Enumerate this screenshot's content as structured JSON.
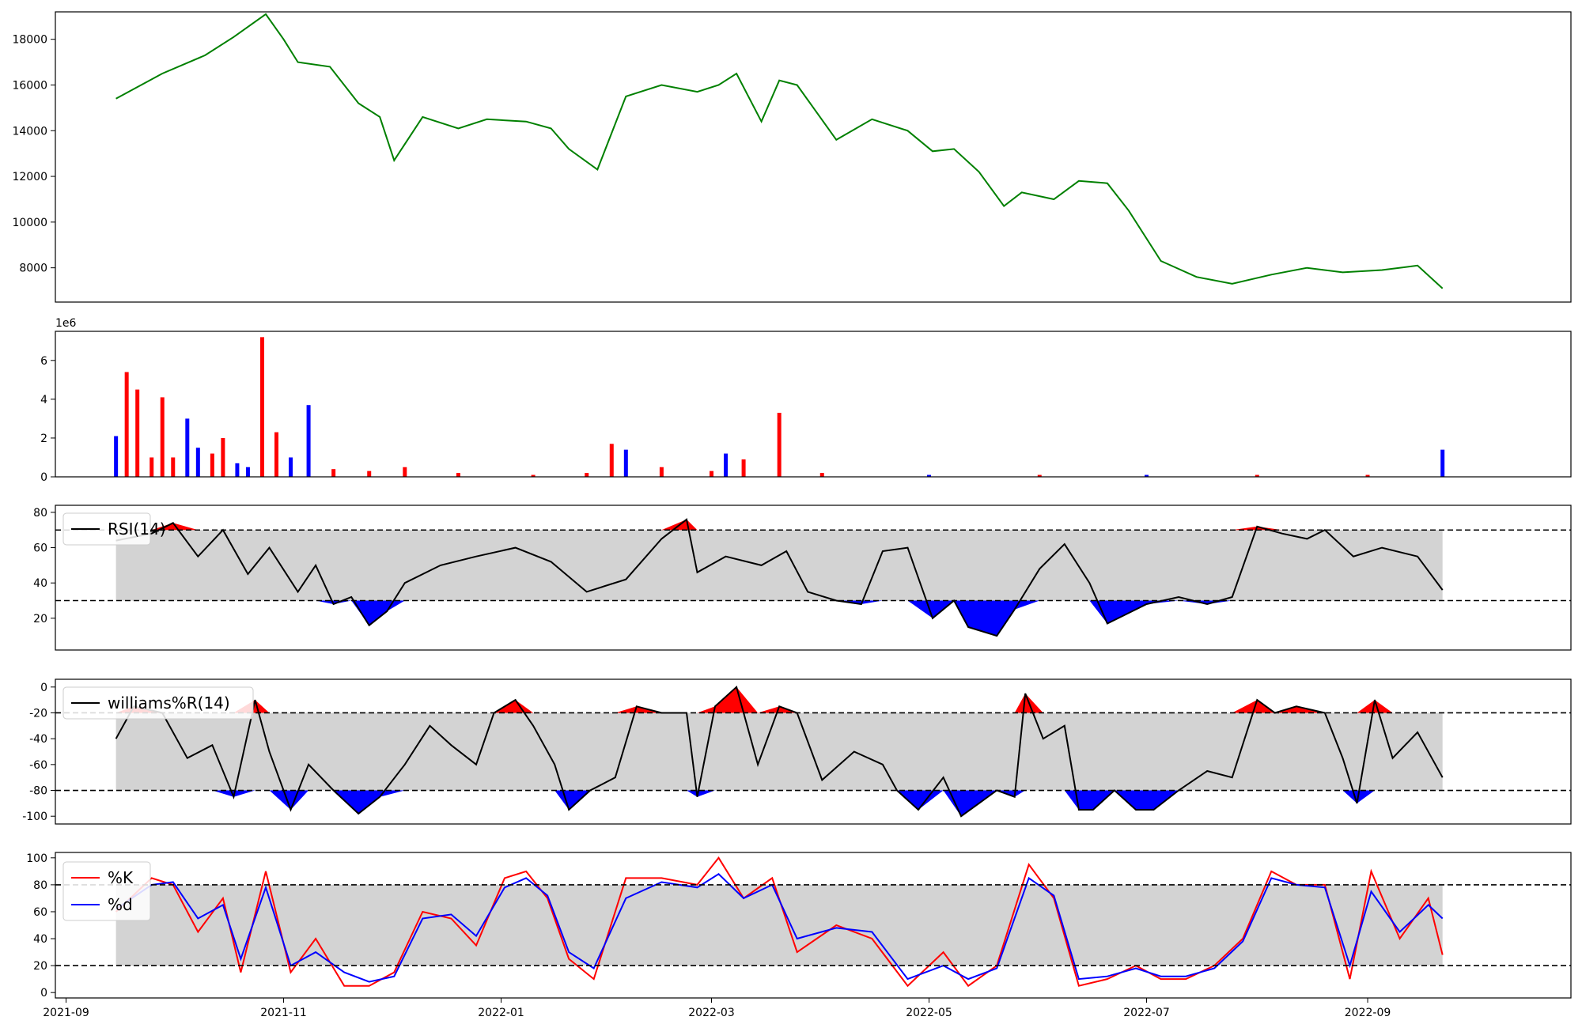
{
  "figure": {
    "x_dates": [
      "2021-09",
      "2021-11",
      "2022-01",
      "2022-03",
      "2022-05",
      "2022-07",
      "2022-09"
    ]
  },
  "colors": {
    "price_line": "#008000",
    "volume_up": "#ff0000",
    "volume_down": "#0000ff",
    "overbought_fill": "#ff0000",
    "oversold_fill": "#0000ff",
    "band_fill": "#d3d3d3",
    "k_line": "#ff0000",
    "d_line": "#0000ff",
    "indicator_line": "#000000"
  },
  "chart_data": [
    {
      "type": "line",
      "panel": "price",
      "ylim": [
        6500,
        19200
      ],
      "yticks": [
        8000,
        10000,
        12000,
        14000,
        16000,
        18000
      ],
      "grid": false,
      "x": [
        "2021-09-15",
        "2021-09-28",
        "2021-10-10",
        "2021-10-18",
        "2021-10-27",
        "2021-11-01",
        "2021-11-05",
        "2021-11-14",
        "2021-11-22",
        "2021-11-28",
        "2021-12-02",
        "2021-12-10",
        "2021-12-20",
        "2021-12-28",
        "2022-01-08",
        "2022-01-15",
        "2022-01-20",
        "2022-01-28",
        "2022-02-05",
        "2022-02-15",
        "2022-02-25",
        "2022-03-03",
        "2022-03-08",
        "2022-03-15",
        "2022-03-20",
        "2022-03-25",
        "2022-04-05",
        "2022-04-15",
        "2022-04-25",
        "2022-05-02",
        "2022-05-08",
        "2022-05-15",
        "2022-05-22",
        "2022-05-27",
        "2022-06-05",
        "2022-06-12",
        "2022-06-20",
        "2022-06-26",
        "2022-07-05",
        "2022-07-15",
        "2022-07-25",
        "2022-08-05",
        "2022-08-15",
        "2022-08-25",
        "2022-09-05",
        "2022-09-15",
        "2022-09-22"
      ],
      "y": [
        15400,
        16500,
        17300,
        18100,
        19100,
        18000,
        17000,
        16800,
        15200,
        14600,
        12700,
        14600,
        14100,
        14500,
        14400,
        14100,
        13200,
        12300,
        15500,
        16000,
        15700,
        16000,
        16500,
        14400,
        16200,
        16000,
        13600,
        14500,
        14000,
        13100,
        13200,
        12200,
        10700,
        11300,
        11000,
        11800,
        11700,
        10500,
        8300,
        7600,
        7300,
        7700,
        8000,
        7800,
        7900,
        8100,
        7100
      ]
    },
    {
      "type": "bar",
      "panel": "volume",
      "axis_multiplier": "1e6",
      "ylim": [
        0,
        7.5
      ],
      "yticks": [
        0,
        2,
        4,
        6
      ],
      "x": [
        "2021-09-15",
        "2021-09-18",
        "2021-09-21",
        "2021-09-25",
        "2021-09-28",
        "2021-10-01",
        "2021-10-05",
        "2021-10-08",
        "2021-10-12",
        "2021-10-15",
        "2021-10-19",
        "2021-10-22",
        "2021-10-26",
        "2021-10-30",
        "2021-11-03",
        "2021-11-08",
        "2021-11-15",
        "2021-11-25",
        "2021-12-05",
        "2021-12-20",
        "2022-01-10",
        "2022-01-25",
        "2022-02-01",
        "2022-02-05",
        "2022-02-15",
        "2022-03-01",
        "2022-03-05",
        "2022-03-10",
        "2022-03-20",
        "2022-04-01",
        "2022-05-01",
        "2022-06-01",
        "2022-07-01",
        "2022-08-01",
        "2022-09-01",
        "2022-09-22"
      ],
      "values": [
        2.1,
        5.4,
        4.5,
        1.0,
        4.1,
        1.0,
        3.0,
        1.5,
        1.2,
        2.0,
        0.7,
        0.5,
        7.2,
        2.3,
        1.0,
        3.7,
        0.4,
        0.3,
        0.5,
        0.2,
        0.1,
        0.2,
        1.7,
        1.4,
        0.5,
        0.3,
        1.2,
        0.9,
        3.3,
        0.2,
        0.1,
        0.1,
        0.1,
        0.1,
        0.1,
        1.4
      ],
      "up": [
        false,
        true,
        true,
        true,
        true,
        true,
        false,
        false,
        true,
        true,
        false,
        false,
        true,
        true,
        false,
        false,
        true,
        true,
        true,
        true,
        true,
        true,
        true,
        false,
        true,
        true,
        false,
        true,
        true,
        true,
        false,
        true,
        false,
        true,
        true,
        false
      ]
    },
    {
      "type": "line",
      "panel": "rsi",
      "legend": [
        "RSI(14)"
      ],
      "legend_position": "upper-left",
      "ylim": [
        2,
        84
      ],
      "yticks": [
        20,
        40,
        60,
        80
      ],
      "thresholds": [
        30,
        70
      ],
      "x": [
        "2021-09-15",
        "2021-09-25",
        "2021-10-01",
        "2021-10-08",
        "2021-10-15",
        "2021-10-22",
        "2021-10-28",
        "2021-11-05",
        "2021-11-10",
        "2021-11-15",
        "2021-11-20",
        "2021-11-25",
        "2021-11-30",
        "2021-12-05",
        "2021-12-15",
        "2021-12-25",
        "2022-01-05",
        "2022-01-15",
        "2022-01-25",
        "2022-02-05",
        "2022-02-15",
        "2022-02-22",
        "2022-02-25",
        "2022-03-05",
        "2022-03-15",
        "2022-03-22",
        "2022-03-28",
        "2022-04-05",
        "2022-04-12",
        "2022-04-18",
        "2022-04-25",
        "2022-05-02",
        "2022-05-08",
        "2022-05-12",
        "2022-05-20",
        "2022-05-25",
        "2022-06-01",
        "2022-06-08",
        "2022-06-15",
        "2022-06-20",
        "2022-06-25",
        "2022-07-01",
        "2022-07-10",
        "2022-07-18",
        "2022-07-25",
        "2022-08-01",
        "2022-08-08",
        "2022-08-15",
        "2022-08-20",
        "2022-08-28",
        "2022-09-05",
        "2022-09-15",
        "2022-09-22"
      ],
      "y": [
        64,
        68,
        74,
        55,
        70,
        45,
        60,
        35,
        50,
        28,
        32,
        16,
        24,
        40,
        50,
        55,
        60,
        52,
        35,
        42,
        65,
        76,
        46,
        55,
        50,
        58,
        35,
        30,
        28,
        58,
        60,
        20,
        30,
        15,
        10,
        25,
        48,
        62,
        40,
        17,
        22,
        28,
        32,
        28,
        32,
        72,
        68,
        65,
        70,
        55,
        60,
        55,
        36
      ]
    },
    {
      "type": "line",
      "panel": "williams",
      "legend": [
        "williams%R(14)"
      ],
      "legend_position": "upper-left",
      "ylim": [
        -106,
        6
      ],
      "yticks": [
        -100,
        -80,
        -60,
        -40,
        -20,
        0
      ],
      "thresholds": [
        -80,
        -20
      ],
      "x": [
        "2021-09-15",
        "2021-09-20",
        "2021-09-28",
        "2021-10-05",
        "2021-10-12",
        "2021-10-18",
        "2021-10-24",
        "2021-10-28",
        "2021-11-03",
        "2021-11-08",
        "2021-11-15",
        "2021-11-22",
        "2021-11-28",
        "2021-12-05",
        "2021-12-12",
        "2021-12-18",
        "2021-12-25",
        "2021-12-30",
        "2022-01-05",
        "2022-01-10",
        "2022-01-16",
        "2022-01-20",
        "2022-01-26",
        "2022-02-02",
        "2022-02-08",
        "2022-02-15",
        "2022-02-22",
        "2022-02-25",
        "2022-03-02",
        "2022-03-08",
        "2022-03-14",
        "2022-03-20",
        "2022-03-25",
        "2022-04-01",
        "2022-04-10",
        "2022-04-18",
        "2022-04-22",
        "2022-04-28",
        "2022-05-05",
        "2022-05-10",
        "2022-05-15",
        "2022-05-20",
        "2022-05-25",
        "2022-05-28",
        "2022-06-02",
        "2022-06-08",
        "2022-06-12",
        "2022-06-16",
        "2022-06-22",
        "2022-06-28",
        "2022-07-03",
        "2022-07-10",
        "2022-07-18",
        "2022-07-25",
        "2022-08-01",
        "2022-08-06",
        "2022-08-12",
        "2022-08-20",
        "2022-08-25",
        "2022-08-29",
        "2022-09-03",
        "2022-09-08",
        "2022-09-15",
        "2022-09-22"
      ],
      "y": [
        -40,
        -15,
        -20,
        -55,
        -45,
        -85,
        -10,
        -50,
        -95,
        -60,
        -80,
        -98,
        -85,
        -60,
        -30,
        -45,
        -60,
        -20,
        -10,
        -30,
        -60,
        -95,
        -80,
        -70,
        -15,
        -20,
        -20,
        -85,
        -15,
        0,
        -60,
        -15,
        -20,
        -72,
        -50,
        -60,
        -80,
        -95,
        -70,
        -100,
        -90,
        -80,
        -85,
        -5,
        -40,
        -30,
        -95,
        -95,
        -80,
        -95,
        -95,
        -80,
        -65,
        -70,
        -10,
        -20,
        -15,
        -20,
        -55,
        -90,
        -10,
        -55,
        -35,
        -70
      ]
    },
    {
      "type": "line",
      "panel": "stochastic",
      "legend": [
        "%K",
        "%d"
      ],
      "legend_position": "upper-left",
      "ylim": [
        -4,
        104
      ],
      "yticks": [
        0,
        20,
        40,
        60,
        80,
        100
      ],
      "thresholds": [
        20,
        80
      ],
      "x": [
        "2021-09-15",
        "2021-09-25",
        "2021-10-01",
        "2021-10-08",
        "2021-10-15",
        "2021-10-20",
        "2021-10-27",
        "2021-11-03",
        "2021-11-10",
        "2021-11-18",
        "2021-11-25",
        "2021-12-02",
        "2021-12-10",
        "2021-12-18",
        "2021-12-25",
        "2022-01-02",
        "2022-01-08",
        "2022-01-14",
        "2022-01-20",
        "2022-01-27",
        "2022-02-05",
        "2022-02-15",
        "2022-02-25",
        "2022-03-03",
        "2022-03-10",
        "2022-03-18",
        "2022-03-25",
        "2022-04-05",
        "2022-04-15",
        "2022-04-25",
        "2022-05-05",
        "2022-05-12",
        "2022-05-20",
        "2022-05-29",
        "2022-06-05",
        "2022-06-12",
        "2022-06-20",
        "2022-06-28",
        "2022-07-05",
        "2022-07-12",
        "2022-07-20",
        "2022-07-28",
        "2022-08-05",
        "2022-08-12",
        "2022-08-20",
        "2022-08-27",
        "2022-09-02",
        "2022-09-10",
        "2022-09-18",
        "2022-09-22"
      ],
      "series": [
        {
          "name": "%K",
          "values": [
            60,
            85,
            80,
            45,
            70,
            15,
            90,
            15,
            40,
            5,
            5,
            15,
            60,
            55,
            35,
            85,
            90,
            70,
            25,
            10,
            85,
            85,
            80,
            100,
            70,
            85,
            30,
            50,
            40,
            5,
            30,
            5,
            20,
            95,
            70,
            5,
            10,
            20,
            10,
            10,
            20,
            40,
            90,
            80,
            80,
            10,
            90,
            40,
            70,
            28
          ]
        },
        {
          "name": "%d",
          "values": [
            62,
            80,
            82,
            55,
            65,
            25,
            78,
            20,
            30,
            15,
            8,
            12,
            55,
            58,
            42,
            78,
            85,
            72,
            30,
            18,
            70,
            82,
            78,
            88,
            70,
            80,
            40,
            48,
            45,
            10,
            20,
            10,
            18,
            85,
            72,
            10,
            12,
            18,
            12,
            12,
            18,
            38,
            85,
            80,
            78,
            20,
            75,
            45,
            65,
            55
          ]
        }
      ]
    }
  ]
}
